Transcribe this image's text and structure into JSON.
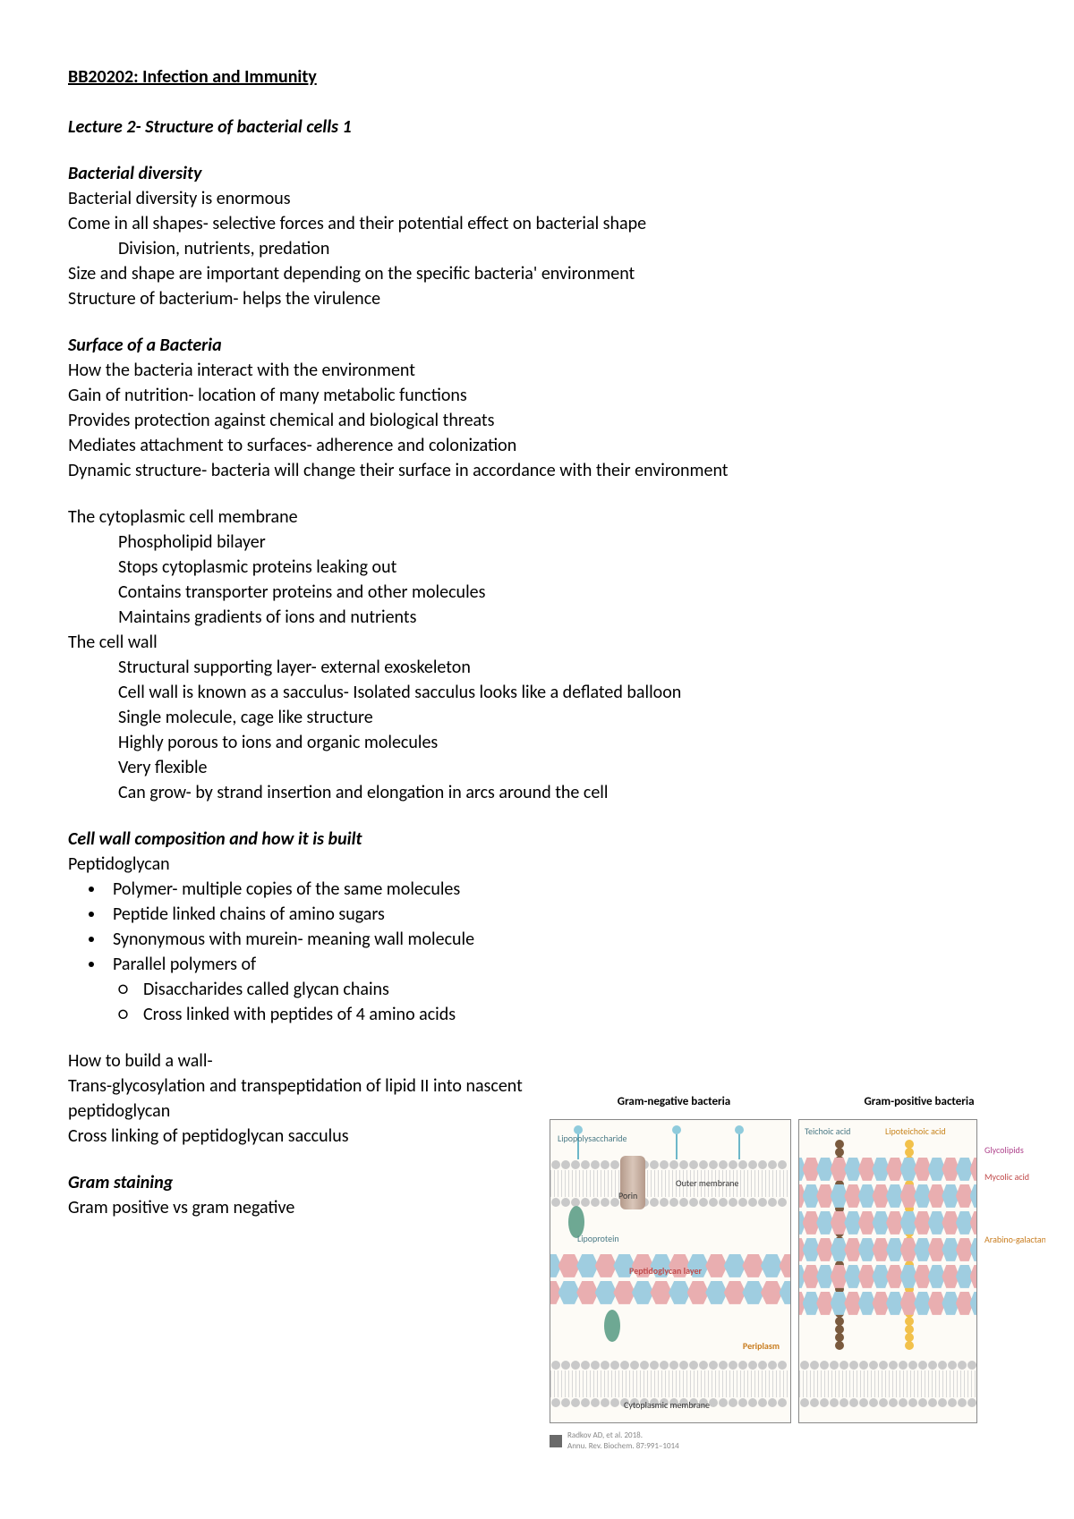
{
  "title": "BB20202: Infection and Immunity",
  "subtitle": "Lecture 2- Structure of bacterial cells 1",
  "s1": {
    "head": "Bacterial diversity",
    "l1": "Bacterial diversity is enormous",
    "l2": "Come in all shapes- selective forces and their potential effect on bacterial shape",
    "l3": "Division, nutrients, predation",
    "l4": "Size and shape are important depending on the specific bacteria' environment",
    "l5": "Structure of bacterium- helps the virulence"
  },
  "s2": {
    "head": "Surface of a Bacteria",
    "l1": "How the bacteria interact with the environment",
    "l2": "Gain of nutrition- location of many metabolic functions",
    "l3": "Provides protection against chemical and biological threats",
    "l4": "Mediates attachment to surfaces- adherence and colonization",
    "l5": "Dynamic structure- bacteria will change their surface in accordance with their environment"
  },
  "s3": {
    "head": "The cytoplasmic cell membrane",
    "l1": "Phospholipid bilayer",
    "l2": "Stops cytoplasmic proteins leaking out",
    "l3": "Contains transporter proteins and other molecules",
    "l4": "Maintains gradients of ions and nutrients"
  },
  "s4": {
    "head": "The cell wall",
    "l1": "Structural supporting layer- external exoskeleton",
    "l2": "Cell wall is known as a sacculus- Isolated sacculus looks like a deflated balloon",
    "l3": "Single molecule, cage like structure",
    "l4": "Highly porous to ions and organic molecules",
    "l5": "Very flexible",
    "l6": "Can grow- by strand insertion and elongation in arcs around the cell"
  },
  "s5": {
    "head": "Cell wall composition and how it is built",
    "sub": "Peptidoglycan",
    "b1": "Polymer- multiple copies of the same molecules",
    "b2": "Peptide linked chains of amino sugars",
    "b3": "Synonymous with murein- meaning wall molecule",
    "b4": "Parallel polymers of",
    "c1": "Disaccharides called glycan chains",
    "c2": "Cross linked with peptides of 4 amino acids"
  },
  "s6": {
    "l1": "How to build a wall-",
    "l2": "Trans-glycosylation and transpeptidation of lipid II into nascent peptidoglycan",
    "l3": "Cross linking of peptidoglycan sacculus"
  },
  "s7": {
    "head": "Gram staining",
    "l1": "Gram positive vs gram negative"
  },
  "figure": {
    "title_a": "Gram-negative bacteria",
    "title_b": "Gram-positive bacteria",
    "labels": {
      "lps": "Lipopolysaccharide",
      "porin": "Porin",
      "outer": "Outer membrane",
      "lipo": "Lipoprotein",
      "pg": "Peptidoglycan layer",
      "peri": "Periplasm",
      "cyto": "Cytoplasmic membrane",
      "teichoic": "Teichoic acid",
      "lipoteichoic": "Lipoteichoic acid",
      "glyco": "Glycolipids",
      "mycolic": "Mycolic acid",
      "arabino": "Arabino-galactan"
    },
    "citation1": "Radkov AD, et al. 2018.",
    "citation2": "Annu. Rev. Biochem. 87:991–1014",
    "colors": {
      "hex_blue": "#9fcde0",
      "hex_pink": "#e9aeb0",
      "circle_gray": "#c9c9c9",
      "brown": "#7a5a3e",
      "yellow": "#f2c14b",
      "teal": "#6ea893",
      "bg": "#fdfbf6"
    }
  }
}
